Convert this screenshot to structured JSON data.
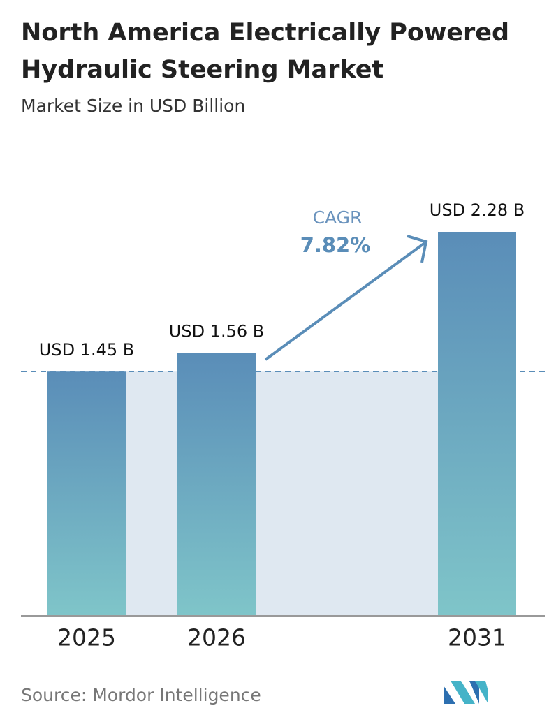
{
  "chart_data": {
    "type": "bar",
    "title_lines": [
      "North America Electrically Powered",
      "Hydraulic Steering Market"
    ],
    "subtitle": "Market Size in USD Billion",
    "categories": [
      "2025",
      "2026",
      "2031"
    ],
    "values": [
      1.45,
      1.56,
      2.28
    ],
    "value_labels": [
      "USD 1.45 B",
      "USD 1.56 B",
      "USD 2.28 B"
    ],
    "annotation": {
      "label": "CAGR",
      "value": "7.82%"
    },
    "source": "Source: Mordor Intelligence",
    "color": [
      "#5a8db8",
      "#7fc5c9"
    ]
  }
}
